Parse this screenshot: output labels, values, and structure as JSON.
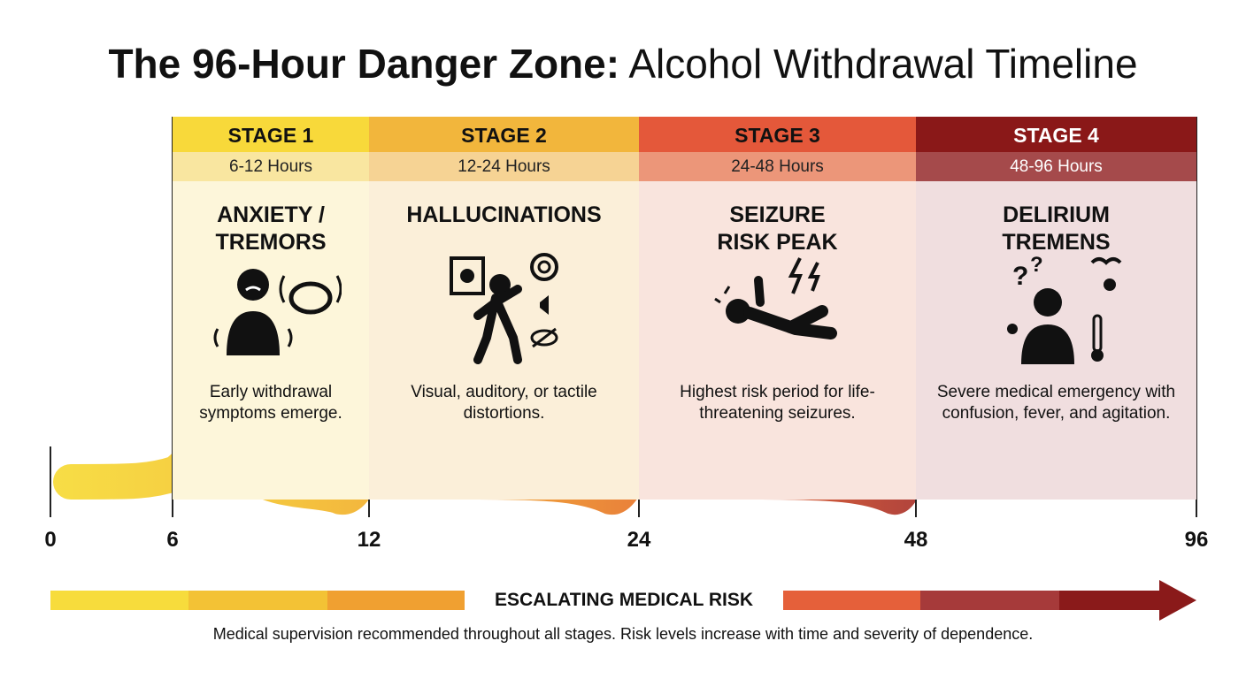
{
  "title": {
    "bold": "The 96-Hour Danger Zone:",
    "regular": "Alcohol Withdrawal Timeline"
  },
  "stages": [
    {
      "label": "STAGE 1",
      "hours": "6-12 Hours",
      "heading": "ANXIETY /\nTREMORS",
      "description": "Early withdrawal symptoms emerge."
    },
    {
      "label": "STAGE 2",
      "hours": "12-24 Hours",
      "heading": "HALLUCINATIONS",
      "description": "Visual, auditory, or tactile distortions."
    },
    {
      "label": "STAGE 3",
      "hours": "24-48 Hours",
      "heading": "SEIZURE\nRISK PEAK",
      "description": "Highest risk period for life-threatening seizures."
    },
    {
      "label": "STAGE 4",
      "hours": "48-96 Hours",
      "heading": "DELIRIUM\nTREMENS",
      "description": "Severe medical emergency with confusion, fever, and agitation."
    }
  ],
  "axis": {
    "ticks": [
      "0",
      "6",
      "12",
      "24",
      "48",
      "96"
    ]
  },
  "risk_label": "ESCALATING MEDICAL RISK",
  "footnote": "Medical supervision recommended throughout all stages. Risk levels increase with time and severity of dependence."
}
